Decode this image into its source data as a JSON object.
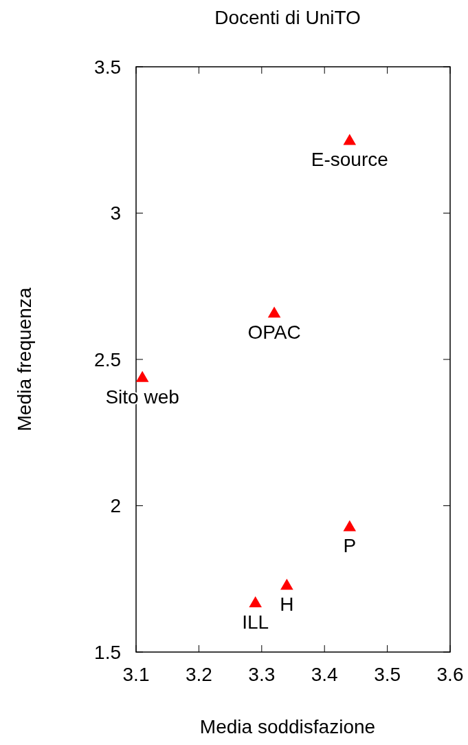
{
  "chart_data": {
    "type": "scatter",
    "title": "Docenti di UniTO",
    "xlabel": "Media soddisfazione",
    "ylabel": "Media frequenza",
    "x": [
      3.44,
      3.32,
      3.11,
      3.44,
      3.34,
      3.29
    ],
    "series": [
      {
        "color": "#ff0000",
        "values": [
          3.25,
          2.66,
          2.44,
          1.93,
          1.73,
          1.67
        ]
      }
    ],
    "annotations": [
      {
        "text": "E-source",
        "x": 3.44,
        "y": 3.25
      },
      {
        "text": "OPAC",
        "x": 3.32,
        "y": 2.66
      },
      {
        "text": "Sito web",
        "x": 3.11,
        "y": 2.44
      },
      {
        "text": "P",
        "x": 3.44,
        "y": 1.93
      },
      {
        "text": "H",
        "x": 3.34,
        "y": 1.73
      },
      {
        "text": "ILL",
        "x": 3.29,
        "y": 1.67
      }
    ],
    "xlim": [
      3.1,
      3.6
    ],
    "xticks": [
      3.1,
      3.2,
      3.3,
      3.4,
      3.5,
      3.6
    ],
    "ylim": [
      1.5,
      3.5
    ],
    "yticks": [
      1.5,
      2,
      2.5,
      3,
      3.5
    ],
    "marker": "triangle"
  }
}
